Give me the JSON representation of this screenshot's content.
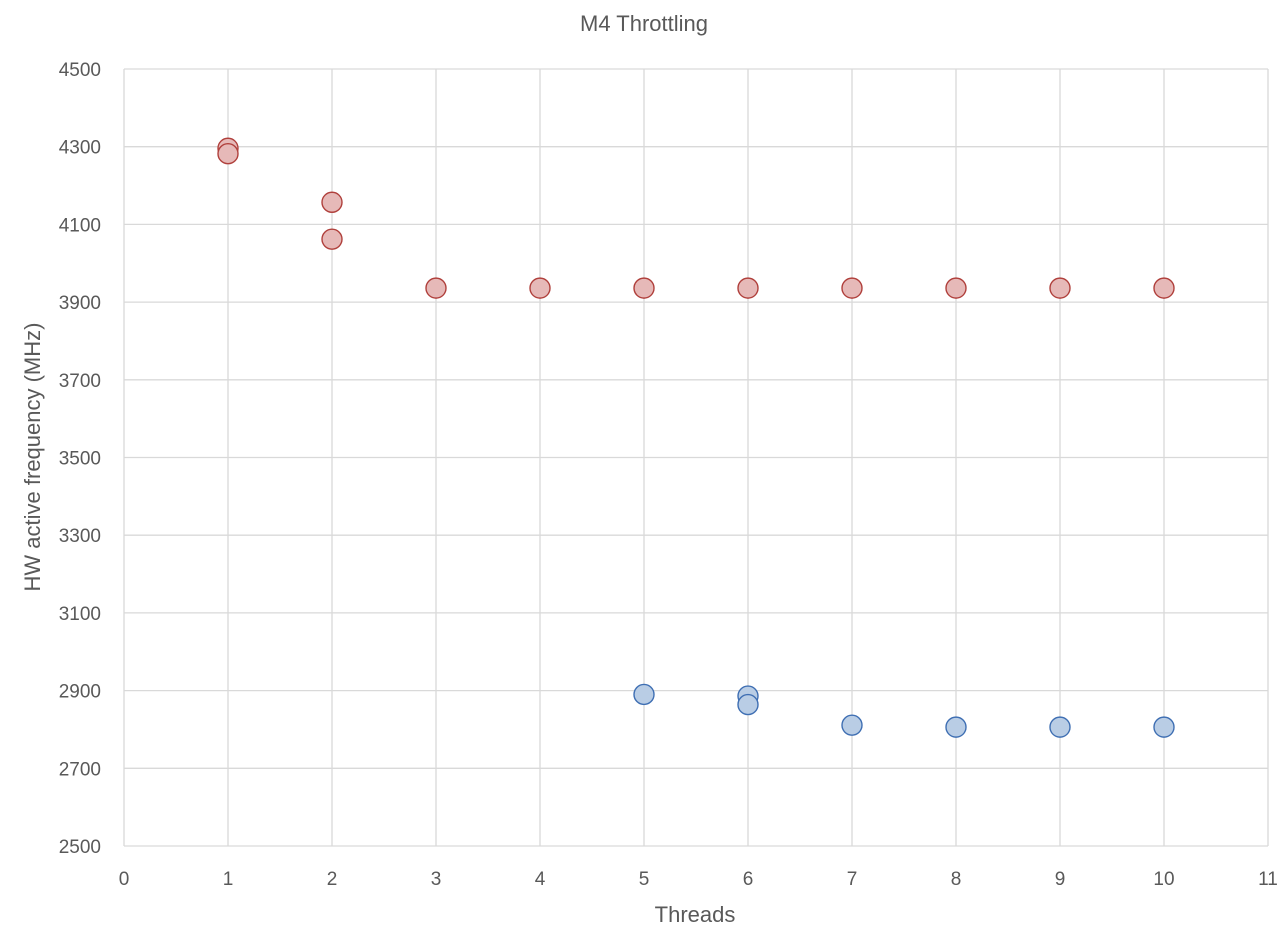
{
  "chart_data": {
    "type": "scatter",
    "title": "M4 Throttling",
    "xlabel": "Threads",
    "ylabel": "HW active frequency (MHz)",
    "xlim": [
      0,
      11
    ],
    "ylim": [
      2500,
      4500
    ],
    "x_ticks": [
      0,
      1,
      2,
      3,
      4,
      5,
      6,
      7,
      8,
      9,
      10,
      11
    ],
    "y_ticks": [
      2500,
      2700,
      2900,
      3100,
      3300,
      3500,
      3700,
      3900,
      4100,
      4300,
      4500
    ],
    "grid": true,
    "legend": "none",
    "series": [
      {
        "color_fill": "#e6b9b8",
        "color_stroke": "#b0403c",
        "points": [
          {
            "x": 1,
            "y": 4296
          },
          {
            "x": 1,
            "y": 4282
          },
          {
            "x": 2,
            "y": 4157
          },
          {
            "x": 2,
            "y": 4062
          },
          {
            "x": 3,
            "y": 3936
          },
          {
            "x": 4,
            "y": 3936
          },
          {
            "x": 5,
            "y": 3936
          },
          {
            "x": 6,
            "y": 3936
          },
          {
            "x": 7,
            "y": 3936
          },
          {
            "x": 8,
            "y": 3936
          },
          {
            "x": 9,
            "y": 3936
          },
          {
            "x": 10,
            "y": 3936
          }
        ]
      },
      {
        "color_fill": "#b9cde5",
        "color_stroke": "#3f6fb3",
        "points": [
          {
            "x": 5,
            "y": 2890
          },
          {
            "x": 6,
            "y": 2886
          },
          {
            "x": 6,
            "y": 2864
          },
          {
            "x": 7,
            "y": 2811
          },
          {
            "x": 8,
            "y": 2806
          },
          {
            "x": 9,
            "y": 2806
          },
          {
            "x": 10,
            "y": 2806
          }
        ]
      }
    ]
  }
}
